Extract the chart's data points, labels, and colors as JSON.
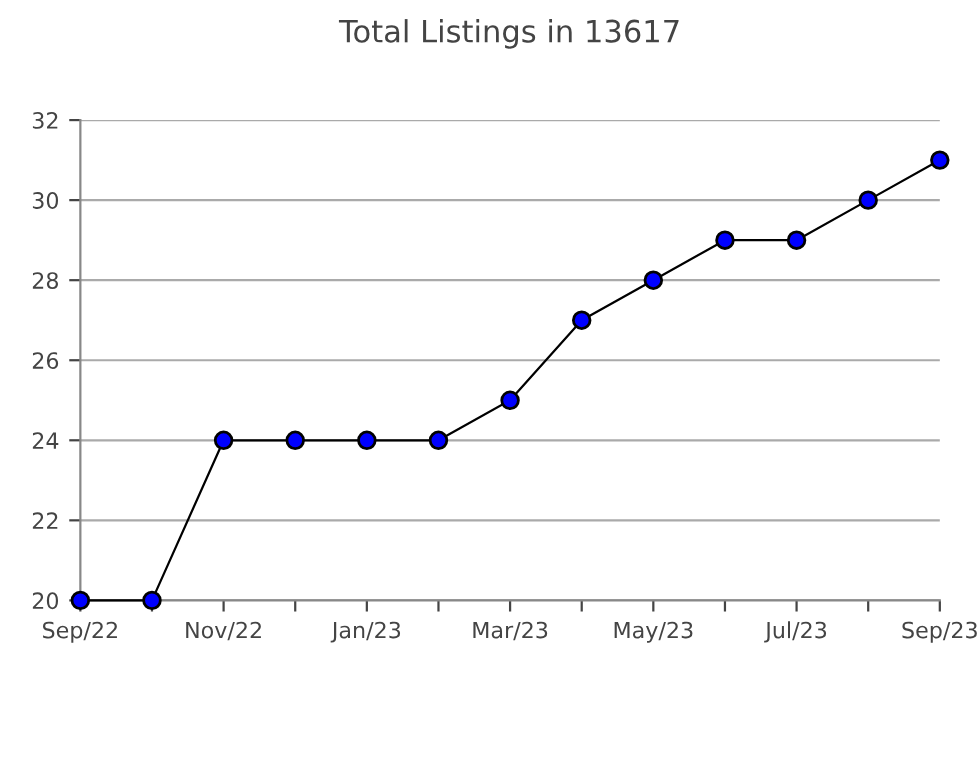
{
  "chart_data": {
    "type": "line",
    "title": "Total Listings in 13617",
    "categories": [
      "Sep/22",
      null,
      "Nov/22",
      null,
      "Jan/23",
      null,
      "Mar/23",
      null,
      "May/23",
      null,
      "Jul/23",
      null,
      "Sep/23"
    ],
    "series": [
      {
        "color": "#0000ff",
        "values": [
          20,
          20,
          24,
          24,
          24,
          24,
          25,
          27,
          28,
          29,
          29,
          30,
          31
        ]
      }
    ],
    "ylim": [
      20,
      32
    ],
    "yticks": [
      20,
      22,
      24,
      26,
      28,
      30,
      32
    ],
    "grid": "y",
    "marker": "circle",
    "line_style": "solid",
    "legend": false
  }
}
